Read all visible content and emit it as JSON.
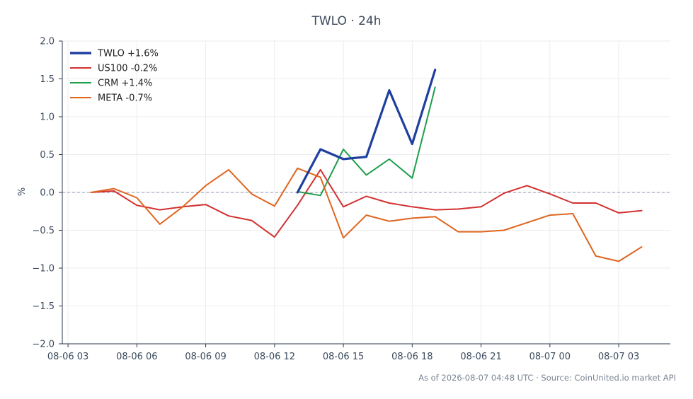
{
  "chart_data": {
    "type": "line",
    "title": "TWLO · 24h",
    "xlabel": "",
    "ylabel": "%",
    "ylim": [
      -2.0,
      2.0
    ],
    "yticks": [
      2.0,
      1.5,
      1.0,
      0.5,
      0.0,
      -0.5,
      -1.0,
      -1.5,
      -2.0
    ],
    "ytick_labels": [
      "2.0",
      "1.5",
      "1.0",
      "0.5",
      "0.0",
      "−0.5",
      "−1.0",
      "−1.5",
      "−2.0"
    ],
    "xlim": [
      "2026-08-06 02:45",
      "2026-08-07 05:15"
    ],
    "xticks": [
      "2026-08-06 03:00",
      "2026-08-06 06:00",
      "2026-08-06 09:00",
      "2026-08-06 12:00",
      "2026-08-06 15:00",
      "2026-08-06 18:00",
      "2026-08-06 21:00",
      "2026-08-07 00:00",
      "2026-08-07 03:00"
    ],
    "xtick_labels": [
      "08-06 03",
      "08-06 06",
      "08-06 09",
      "08-06 12",
      "08-06 15",
      "08-06 18",
      "08-06 21",
      "08-07 00",
      "08-07 03"
    ],
    "grid": true,
    "reference_line": 0,
    "legend_position": "top-left",
    "series": [
      {
        "name": "TWLO +1.6%",
        "color": "#1f3f9f",
        "x": [
          "2026-08-06 13:00",
          "2026-08-06 14:00",
          "2026-08-06 15:00",
          "2026-08-06 16:00",
          "2026-08-06 17:00",
          "2026-08-06 18:00",
          "2026-08-06 19:00"
        ],
        "y": [
          0.0,
          0.57,
          0.44,
          0.47,
          1.35,
          0.64,
          1.62
        ]
      },
      {
        "name": "US100 -0.2%",
        "color": "#d23030",
        "x": [
          "2026-08-06 04:00",
          "2026-08-06 05:00",
          "2026-08-06 06:00",
          "2026-08-06 07:00",
          "2026-08-06 08:00",
          "2026-08-06 09:00",
          "2026-08-06 10:00",
          "2026-08-06 11:00",
          "2026-08-06 12:00",
          "2026-08-06 13:00",
          "2026-08-06 14:00",
          "2026-08-06 15:00",
          "2026-08-06 16:00",
          "2026-08-06 17:00",
          "2026-08-06 18:00",
          "2026-08-06 19:00",
          "2026-08-06 20:00",
          "2026-08-06 21:00",
          "2026-08-06 22:00",
          "2026-08-06 23:00",
          "2026-08-07 00:00",
          "2026-08-07 01:00",
          "2026-08-07 02:00",
          "2026-08-07 03:00",
          "2026-08-07 04:00"
        ],
        "y": [
          0.0,
          0.02,
          -0.17,
          -0.23,
          -0.19,
          -0.16,
          -0.31,
          -0.37,
          -0.59,
          -0.17,
          0.3,
          -0.19,
          -0.05,
          -0.14,
          -0.19,
          -0.23,
          -0.22,
          -0.19,
          -0.01,
          0.09,
          -0.02,
          -0.14,
          -0.14,
          -0.27,
          -0.24
        ]
      },
      {
        "name": "CRM +1.4%",
        "color": "#1e9e4a",
        "x": [
          "2026-08-06 13:00",
          "2026-08-06 14:00",
          "2026-08-06 15:00",
          "2026-08-06 16:00",
          "2026-08-06 17:00",
          "2026-08-06 18:00",
          "2026-08-06 19:00"
        ],
        "y": [
          0.01,
          -0.04,
          0.57,
          0.23,
          0.44,
          0.19,
          1.39
        ]
      },
      {
        "name": "META -0.7%",
        "color": "#e0651e",
        "x": [
          "2026-08-06 04:00",
          "2026-08-06 05:00",
          "2026-08-06 06:00",
          "2026-08-06 07:00",
          "2026-08-06 08:00",
          "2026-08-06 09:00",
          "2026-08-06 10:00",
          "2026-08-06 11:00",
          "2026-08-06 12:00",
          "2026-08-06 13:00",
          "2026-08-06 14:00",
          "2026-08-06 15:00",
          "2026-08-06 16:00",
          "2026-08-06 17:00",
          "2026-08-06 18:00",
          "2026-08-06 19:00",
          "2026-08-06 20:00",
          "2026-08-06 21:00",
          "2026-08-06 22:00",
          "2026-08-06 23:00",
          "2026-08-07 00:00",
          "2026-08-07 01:00",
          "2026-08-07 02:00",
          "2026-08-07 03:00",
          "2026-08-07 04:00"
        ],
        "y": [
          0.0,
          0.05,
          -0.07,
          -0.42,
          -0.19,
          0.09,
          0.3,
          -0.02,
          -0.18,
          0.32,
          0.2,
          -0.6,
          -0.3,
          -0.38,
          -0.34,
          -0.32,
          -0.52,
          -0.52,
          -0.5,
          -0.4,
          -0.3,
          -0.28,
          -0.84,
          -0.91,
          -0.72
        ]
      }
    ]
  },
  "footer": {
    "note": "As of 2026-08-07 04:48 UTC · Source: CoinUnited.io market API"
  },
  "colors": {
    "axis": "#2e3a4a",
    "grid": "#ececf0",
    "zero_line": "#8b98b0",
    "tick_text": "#3b4a5c"
  }
}
